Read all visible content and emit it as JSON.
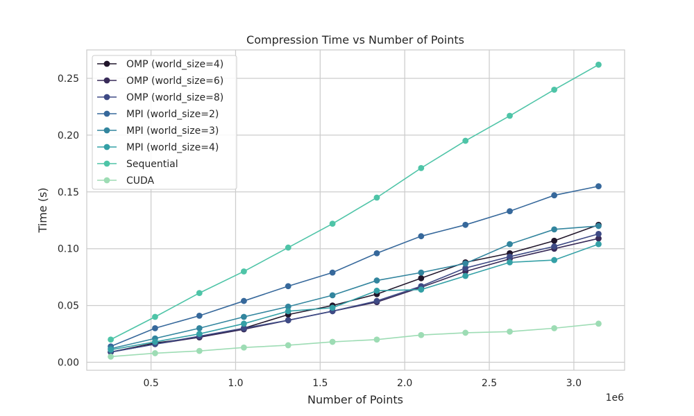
{
  "chart_data": {
    "type": "line",
    "title": "Compression Time vs Number of Points",
    "xlabel": "Number of Points",
    "ylabel": "Time (s)",
    "x_offset_label": "1e6",
    "xlim": [
      0.12,
      3.3
    ],
    "ylim": [
      -0.007,
      0.275
    ],
    "x_ticks": [
      0.5,
      1.0,
      1.5,
      2.0,
      2.5,
      3.0
    ],
    "x_tick_labels": [
      "0.5",
      "1.0",
      "1.5",
      "2.0",
      "2.5",
      "3.0"
    ],
    "y_ticks": [
      0.0,
      0.05,
      0.1,
      0.15,
      0.2,
      0.25
    ],
    "y_tick_labels": [
      "0.00",
      "0.05",
      "0.10",
      "0.15",
      "0.20",
      "0.25"
    ],
    "grid": true,
    "legend_position": "top-left",
    "x": [
      0.262,
      0.524,
      0.786,
      1.049,
      1.311,
      1.573,
      1.835,
      2.097,
      2.359,
      2.621,
      2.884,
      3.146
    ],
    "series": [
      {
        "name": "OMP (world_size=4)",
        "color": "#21162b",
        "values": [
          0.009,
          0.017,
          0.022,
          0.03,
          0.042,
          0.05,
          0.06,
          0.074,
          0.088,
          0.096,
          0.107,
          0.121
        ]
      },
      {
        "name": "OMP (world_size=6)",
        "color": "#382b59",
        "values": [
          0.009,
          0.016,
          0.022,
          0.029,
          0.037,
          0.045,
          0.053,
          0.066,
          0.08,
          0.091,
          0.1,
          0.109
        ]
      },
      {
        "name": "OMP (world_size=8)",
        "color": "#3e4a85",
        "values": [
          0.009,
          0.016,
          0.023,
          0.03,
          0.037,
          0.045,
          0.054,
          0.067,
          0.083,
          0.093,
          0.102,
          0.113
        ]
      },
      {
        "name": "MPI (world_size=2)",
        "color": "#36689b",
        "values": [
          0.014,
          0.03,
          0.041,
          0.054,
          0.067,
          0.079,
          0.096,
          0.111,
          0.121,
          0.133,
          0.147,
          0.155
        ]
      },
      {
        "name": "MPI (world_size=3)",
        "color": "#32859e",
        "values": [
          0.012,
          0.021,
          0.03,
          0.04,
          0.049,
          0.059,
          0.072,
          0.079,
          0.087,
          0.104,
          0.117,
          0.12
        ]
      },
      {
        "name": "MPI (world_size=4)",
        "color": "#34a0a6",
        "values": [
          0.011,
          0.018,
          0.025,
          0.034,
          0.045,
          0.048,
          0.063,
          0.064,
          0.076,
          0.088,
          0.09,
          0.104
        ]
      },
      {
        "name": "Sequential",
        "color": "#4ec4a7",
        "values": [
          0.02,
          0.04,
          0.061,
          0.08,
          0.101,
          0.122,
          0.145,
          0.171,
          0.195,
          0.217,
          0.24,
          0.262
        ]
      },
      {
        "name": "CUDA",
        "color": "#9ddcb4",
        "values": [
          0.005,
          0.008,
          0.01,
          0.013,
          0.015,
          0.018,
          0.02,
          0.024,
          0.026,
          0.027,
          0.03,
          0.034
        ]
      }
    ]
  }
}
